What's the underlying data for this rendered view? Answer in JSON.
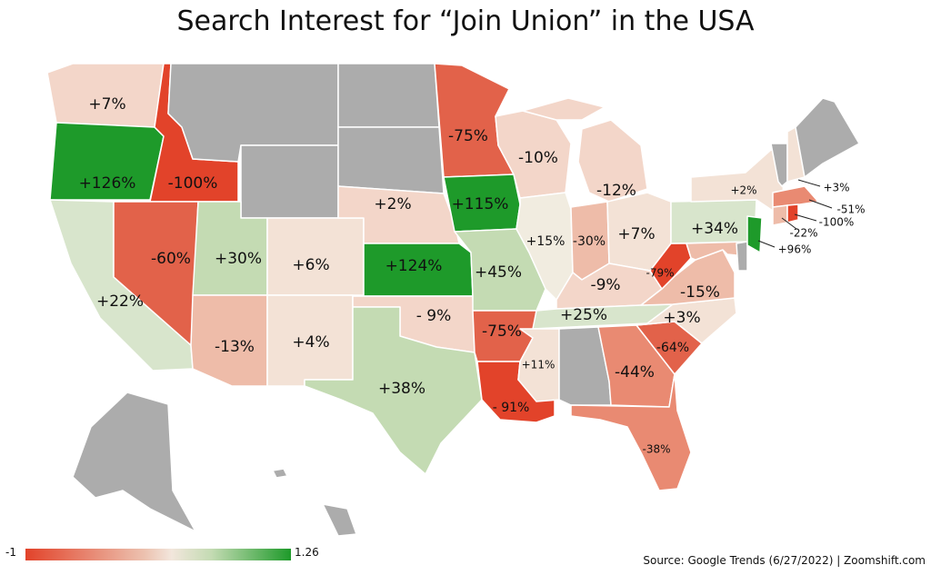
{
  "title": "Search Interest for “Join Union” in the USA",
  "legend": {
    "min": "-1",
    "max": "1.26"
  },
  "source": "Source: Google Trends (6/27/2022) | Zoomshift.com",
  "colors": {
    "no_data": "#acacac",
    "dark_red": "#e2432a",
    "red": "#e2624a",
    "salmon": "#e98a72",
    "pink": "#eebca9",
    "light_pink": "#f3d6c9",
    "beige": "#f3e2d6",
    "cream": "#f1ece0",
    "pale_green": "#d8e5cc",
    "light_green": "#c4dbb3",
    "dark_green": "#1e9a2a"
  },
  "states": {
    "wa": "+7%",
    "or": "+126%",
    "id": "-100%",
    "ca": "+22%",
    "nv": "-60%",
    "ut": "+30%",
    "co": "+6%",
    "az": "-13%",
    "nm": "+4%",
    "tx": "+38%",
    "ne": "+2%",
    "ks": "+124%",
    "ok": "- 9%",
    "mn": "-75%",
    "ia": "+115%",
    "mo": "+45%",
    "ar": "-75%",
    "la": "- 91%",
    "ms": "+11%",
    "wi": "-10%",
    "il": "+15%",
    "mi": "-12%",
    "in": "-30%",
    "oh": "+7%",
    "ky": "-9%",
    "tn": "+25%",
    "ga": "-44%",
    "fl": "-38%",
    "sc": "-64%",
    "nc": "+3%",
    "va": "-15%",
    "wv": "-79%",
    "pa": "+34%",
    "nj": "+96%",
    "ny": "+2%",
    "nh": "+3%",
    "ma": "-51%",
    "ri": "-100%",
    "ct": "-22%"
  }
}
